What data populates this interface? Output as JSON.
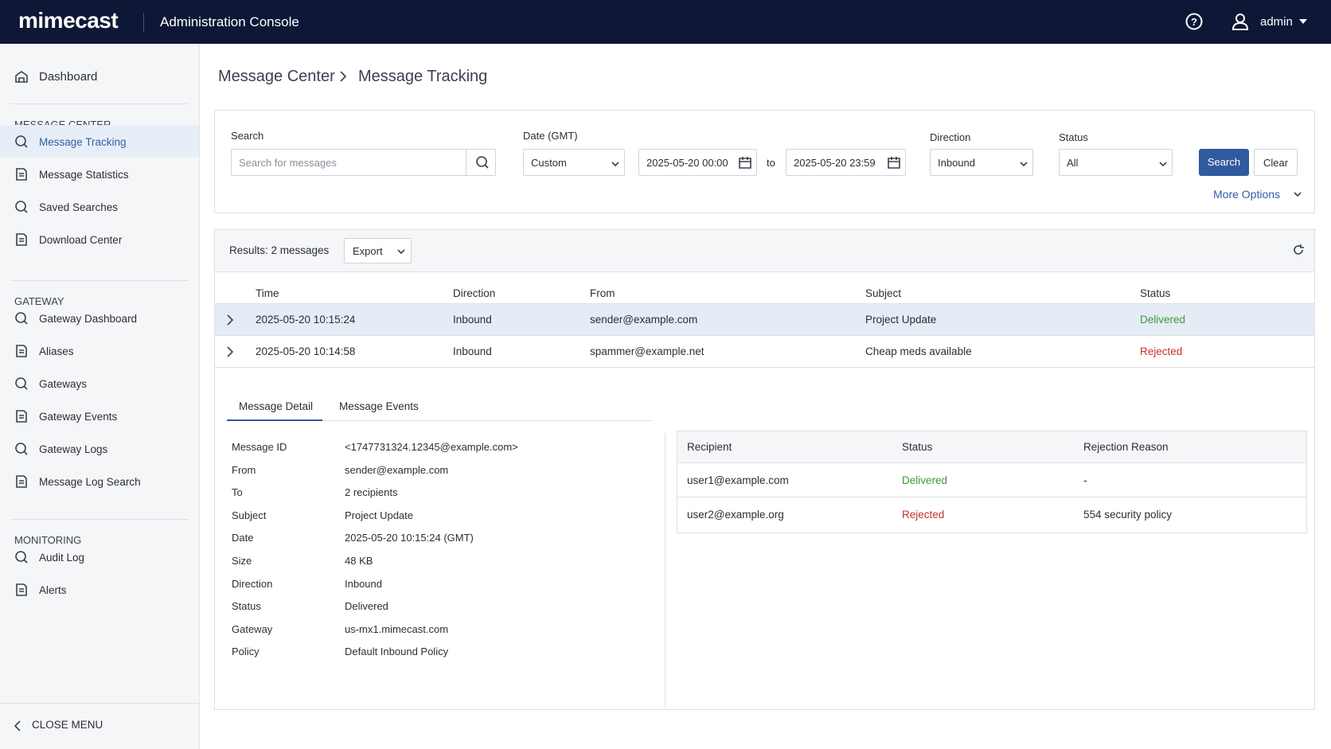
{
  "header": {
    "brand": "mimecast",
    "title": "Administration Console",
    "user": "admin"
  },
  "sidebar": {
    "top": "Dashboard",
    "sections": [
      {
        "title": "MESSAGE CENTER",
        "items": [
          "Message Tracking",
          "Message Statistics",
          "Saved Searches",
          "Download Center"
        ]
      },
      {
        "title": "GATEWAY",
        "items": [
          "Gateway Dashboard",
          "Aliases",
          "Gateways",
          "Gateway Events",
          "Gateway Logs",
          "Message Log Search"
        ]
      },
      {
        "title": "MONITORING",
        "items": [
          "Audit Log",
          "Alerts"
        ]
      }
    ],
    "close": "CLOSE MENU"
  },
  "breadcrumb": [
    "Message Center",
    "Message Tracking"
  ],
  "search": {
    "search_label": "Search",
    "search_placeholder": "Search for messages",
    "date_label": "Date (GMT)",
    "date_range": "Custom",
    "from": "2025-05-20 00:00",
    "to_label": "to",
    "to": "2025-05-20 23:59",
    "direction_label": "Direction",
    "direction": "Inbound",
    "status_label": "Status",
    "status": "All",
    "search_button": "Search",
    "clear_button": "Clear",
    "more_options": "More Options"
  },
  "results": {
    "summary": "Results: 2 messages",
    "export": "Export",
    "columns": [
      "Time",
      "Direction",
      "From",
      "Subject",
      "Status"
    ],
    "rows": [
      [
        "2025-05-20 10:15:24",
        "Inbound",
        "sender@example.com",
        "Project Update",
        "Delivered"
      ],
      [
        "2025-05-20 10:14:58",
        "Inbound",
        "spammer@example.net",
        "Cheap meds available",
        "Rejected"
      ]
    ]
  },
  "detail": {
    "tabs": [
      "Message Detail",
      "Message Events"
    ],
    "fields": [
      [
        "Message ID",
        "<1747731324.12345@example.com>"
      ],
      [
        "From",
        "sender@example.com"
      ],
      [
        "To",
        "2 recipients"
      ],
      [
        "Subject",
        "Project Update"
      ],
      [
        "Date",
        "2025-05-20 10:15:24 (GMT)"
      ],
      [
        "Size",
        "48 KB"
      ],
      [
        "Direction",
        "Inbound"
      ],
      [
        "Status",
        "Delivered"
      ],
      [
        "Gateway",
        "us-mx1.mimecast.com"
      ],
      [
        "Policy",
        "Default Inbound Policy"
      ]
    ],
    "recipients": {
      "columns": [
        "Recipient",
        "Status",
        "Rejection Reason"
      ],
      "rows": [
        [
          "user1@example.com",
          "Delivered",
          "-"
        ],
        [
          "user2@example.org",
          "Rejected",
          "554 security policy"
        ]
      ]
    }
  }
}
